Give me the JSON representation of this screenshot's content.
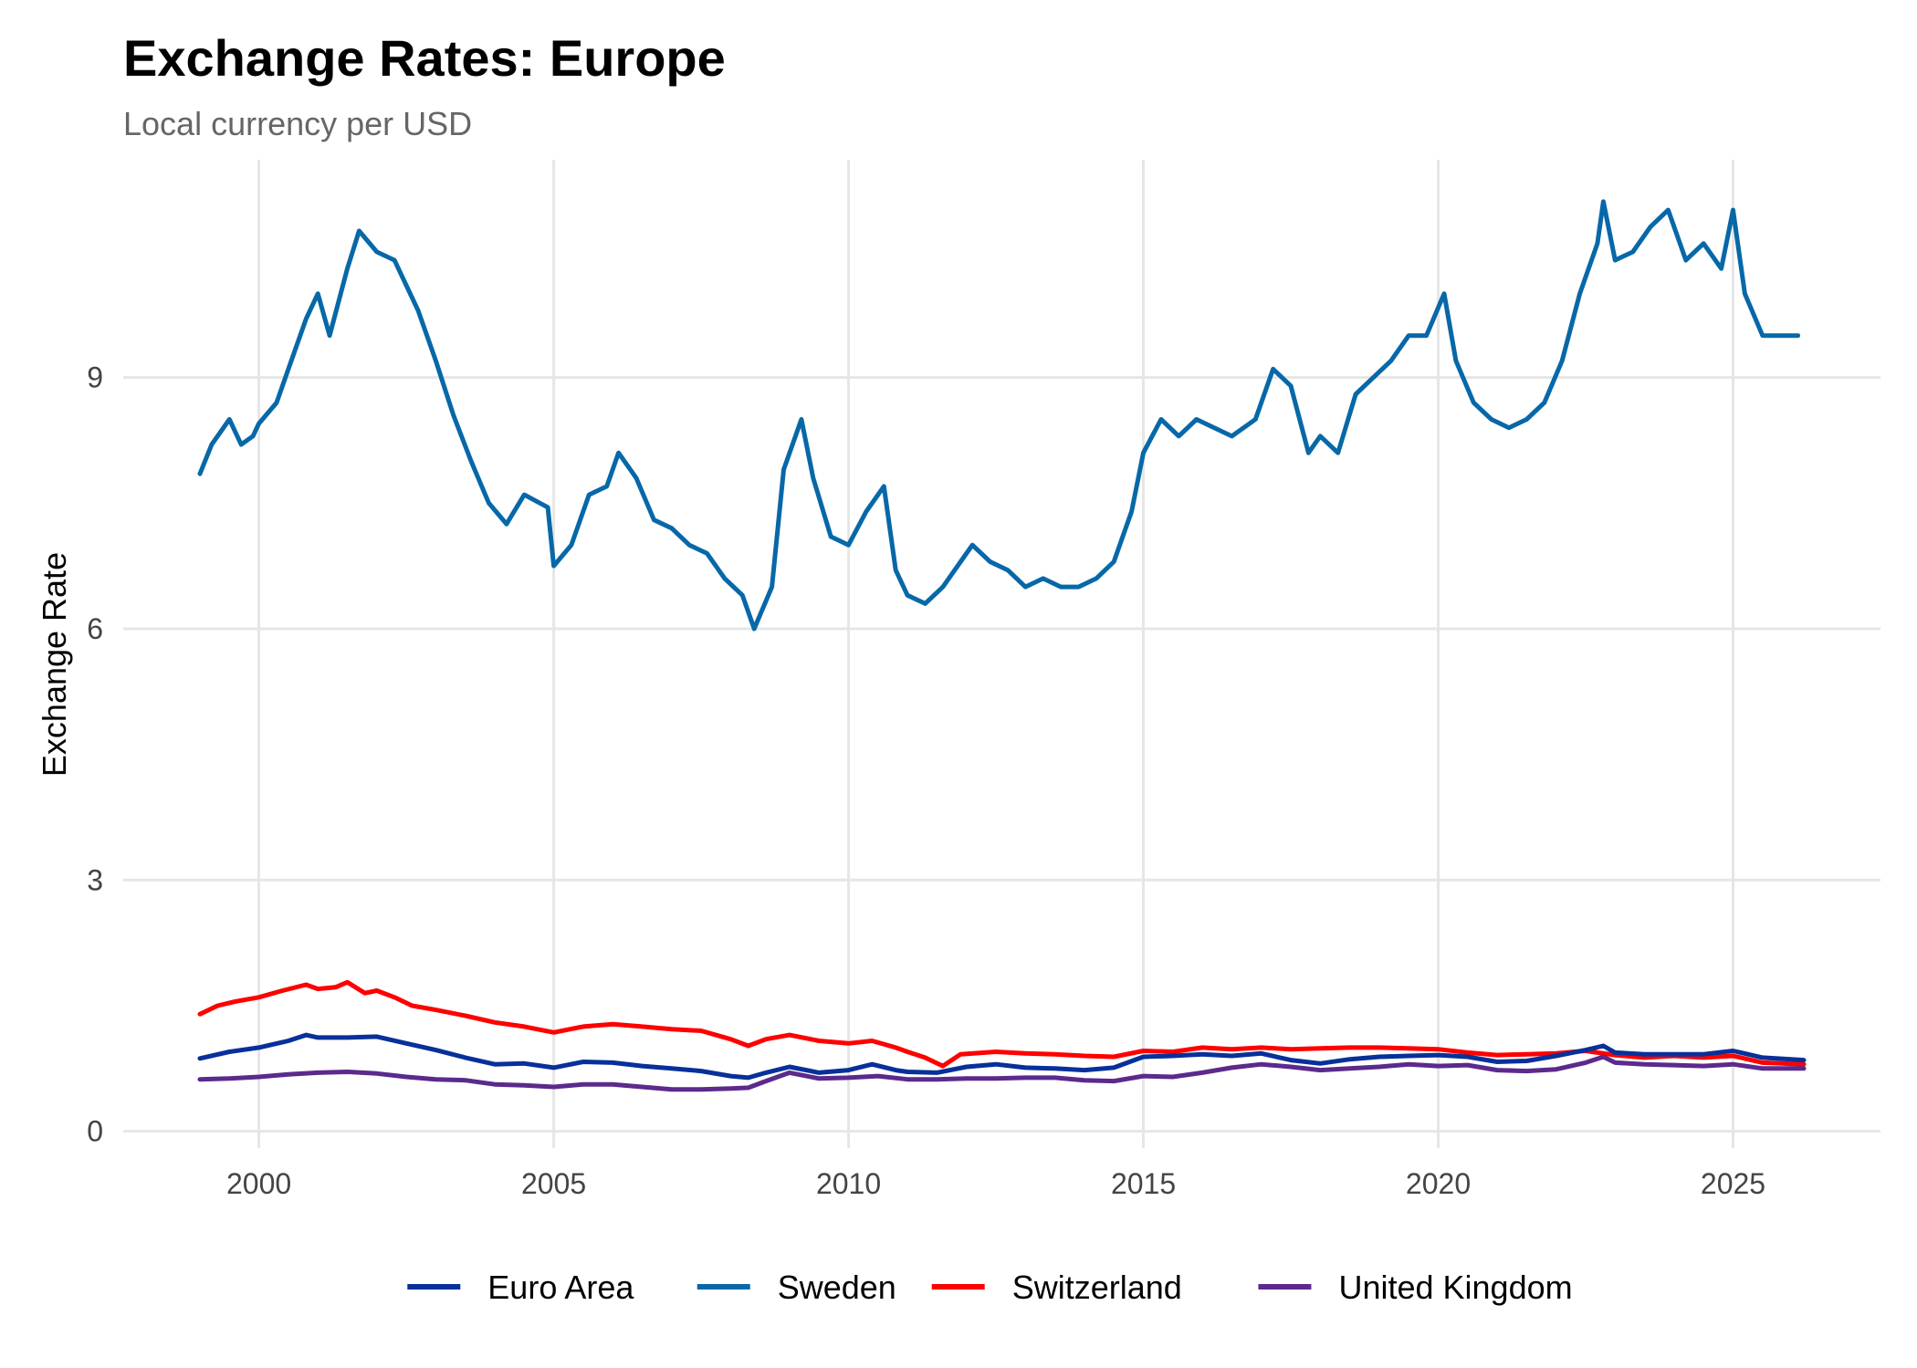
{
  "chart_data": {
    "type": "line",
    "title": "Exchange Rates: Europe",
    "subtitle": "Local currency per USD",
    "xlabel": "",
    "ylabel": "Exchange Rate",
    "xlim": [
      1997.7,
      2027.5
    ],
    "ylim": [
      -0.2,
      11.6
    ],
    "x_ticks": [
      2000,
      2005,
      2010,
      2015,
      2020,
      2025
    ],
    "y_ticks": [
      0,
      3,
      6,
      9
    ],
    "grid": true,
    "legend_position": "bottom",
    "series": [
      {
        "name": "Euro Area",
        "color": "#08309a",
        "x": [
          1999.0,
          1999.5,
          2000.0,
          2000.5,
          2000.8,
          2001.0,
          2001.5,
          2002.0,
          2002.5,
          2003.0,
          2003.5,
          2004.0,
          2004.5,
          2005.0,
          2005.5,
          2006.0,
          2006.5,
          2007.0,
          2007.5,
          2008.0,
          2008.3,
          2008.6,
          2009.0,
          2009.5,
          2010.0,
          2010.4,
          2010.8,
          2011.0,
          2011.5,
          2012.0,
          2012.5,
          2013.0,
          2013.5,
          2014.0,
          2014.5,
          2015.0,
          2015.5,
          2016.0,
          2016.5,
          2017.0,
          2017.5,
          2018.0,
          2018.5,
          2019.0,
          2019.5,
          2020.0,
          2020.5,
          2021.0,
          2021.5,
          2022.0,
          2022.5,
          2022.8,
          2023.0,
          2023.5,
          2024.0,
          2024.5,
          2025.0,
          2025.5,
          2026.2
        ],
        "values": [
          0.87,
          0.95,
          1.0,
          1.08,
          1.15,
          1.12,
          1.12,
          1.13,
          1.05,
          0.97,
          0.88,
          0.8,
          0.81,
          0.76,
          0.83,
          0.82,
          0.78,
          0.75,
          0.72,
          0.66,
          0.64,
          0.7,
          0.77,
          0.7,
          0.73,
          0.8,
          0.73,
          0.71,
          0.7,
          0.77,
          0.8,
          0.76,
          0.75,
          0.73,
          0.76,
          0.89,
          0.9,
          0.92,
          0.9,
          0.93,
          0.85,
          0.81,
          0.86,
          0.89,
          0.9,
          0.91,
          0.89,
          0.83,
          0.84,
          0.9,
          0.97,
          1.02,
          0.94,
          0.92,
          0.92,
          0.92,
          0.96,
          0.88,
          0.85
        ]
      },
      {
        "name": "Sweden",
        "color": "#0768a8",
        "x": [
          1999.0,
          1999.2,
          1999.5,
          1999.7,
          1999.9,
          2000.0,
          2000.3,
          2000.5,
          2000.8,
          2001.0,
          2001.2,
          2001.5,
          2001.7,
          2002.0,
          2002.3,
          2002.7,
          2003.0,
          2003.3,
          2003.6,
          2003.9,
          2004.2,
          2004.5,
          2004.9,
          2005.0,
          2005.3,
          2005.6,
          2005.9,
          2006.1,
          2006.4,
          2006.7,
          2007.0,
          2007.3,
          2007.6,
          2007.9,
          2008.2,
          2008.4,
          2008.7,
          2008.9,
          2009.2,
          2009.4,
          2009.7,
          2010.0,
          2010.3,
          2010.6,
          2010.8,
          2011.0,
          2011.3,
          2011.6,
          2011.9,
          2012.1,
          2012.4,
          2012.7,
          2013.0,
          2013.3,
          2013.6,
          2013.9,
          2014.2,
          2014.5,
          2014.8,
          2015.0,
          2015.3,
          2015.6,
          2015.9,
          2016.2,
          2016.5,
          2016.9,
          2017.2,
          2017.5,
          2017.8,
          2018.0,
          2018.3,
          2018.6,
          2018.9,
          2019.2,
          2019.5,
          2019.8,
          2020.1,
          2020.3,
          2020.6,
          2020.9,
          2021.2,
          2021.5,
          2021.8,
          2022.1,
          2022.4,
          2022.7,
          2022.8,
          2023.0,
          2023.3,
          2023.6,
          2023.9,
          2024.2,
          2024.5,
          2024.8,
          2025.0,
          2025.2,
          2025.5,
          2026.1
        ],
        "values": [
          7.85,
          8.2,
          8.5,
          8.2,
          8.3,
          8.45,
          8.7,
          9.1,
          9.7,
          10.0,
          9.5,
          10.3,
          10.75,
          10.5,
          10.4,
          9.8,
          9.2,
          8.55,
          8.0,
          7.5,
          7.25,
          7.6,
          7.45,
          6.75,
          7.0,
          7.6,
          7.7,
          8.1,
          7.8,
          7.3,
          7.2,
          7.0,
          6.9,
          6.6,
          6.4,
          6.0,
          6.5,
          7.9,
          8.5,
          7.8,
          7.1,
          7.0,
          7.4,
          7.7,
          6.7,
          6.4,
          6.3,
          6.5,
          6.8,
          7.0,
          6.8,
          6.7,
          6.5,
          6.6,
          6.5,
          6.5,
          6.6,
          6.8,
          7.4,
          8.1,
          8.5,
          8.3,
          8.5,
          8.4,
          8.3,
          8.5,
          9.1,
          8.9,
          8.1,
          8.3,
          8.1,
          8.8,
          9.0,
          9.2,
          9.5,
          9.5,
          10.0,
          9.2,
          8.7,
          8.5,
          8.4,
          8.5,
          8.7,
          9.2,
          10.0,
          10.6,
          11.1,
          10.4,
          10.5,
          10.8,
          11.0,
          10.4,
          10.6,
          10.3,
          11.0,
          10.0,
          9.5,
          9.5
        ]
      },
      {
        "name": "Switzerland",
        "color": "#ff0000",
        "x": [
          1999.0,
          1999.3,
          1999.6,
          2000.0,
          2000.4,
          2000.8,
          2001.0,
          2001.3,
          2001.5,
          2001.8,
          2002.0,
          2002.3,
          2002.6,
          2003.0,
          2003.5,
          2004.0,
          2004.5,
          2005.0,
          2005.5,
          2006.0,
          2006.5,
          2007.0,
          2007.5,
          2008.0,
          2008.3,
          2008.6,
          2009.0,
          2009.5,
          2010.0,
          2010.4,
          2010.8,
          2011.0,
          2011.3,
          2011.6,
          2011.9,
          2012.5,
          2013.0,
          2013.5,
          2014.0,
          2014.5,
          2015.0,
          2015.5,
          2016.0,
          2016.5,
          2017.0,
          2017.5,
          2018.0,
          2018.5,
          2019.0,
          2019.5,
          2020.0,
          2020.5,
          2021.0,
          2021.5,
          2022.0,
          2022.5,
          2023.0,
          2023.5,
          2024.0,
          2024.5,
          2025.0,
          2025.5,
          2026.2
        ],
        "values": [
          1.4,
          1.5,
          1.55,
          1.6,
          1.68,
          1.75,
          1.7,
          1.72,
          1.78,
          1.65,
          1.68,
          1.6,
          1.5,
          1.45,
          1.38,
          1.3,
          1.25,
          1.18,
          1.25,
          1.28,
          1.25,
          1.22,
          1.2,
          1.1,
          1.02,
          1.1,
          1.15,
          1.08,
          1.05,
          1.08,
          1.0,
          0.95,
          0.88,
          0.78,
          0.92,
          0.95,
          0.93,
          0.92,
          0.9,
          0.89,
          0.96,
          0.95,
          1.0,
          0.98,
          1.0,
          0.98,
          0.99,
          1.0,
          1.0,
          0.99,
          0.98,
          0.94,
          0.91,
          0.92,
          0.93,
          0.96,
          0.91,
          0.88,
          0.9,
          0.88,
          0.9,
          0.82,
          0.8
        ]
      },
      {
        "name": "United Kingdom",
        "color": "#5b2a8c",
        "x": [
          1999.0,
          1999.5,
          2000.0,
          2000.5,
          2001.0,
          2001.5,
          2002.0,
          2002.5,
          2003.0,
          2003.5,
          2004.0,
          2004.5,
          2005.0,
          2005.5,
          2006.0,
          2006.5,
          2007.0,
          2007.5,
          2008.0,
          2008.3,
          2008.6,
          2009.0,
          2009.5,
          2010.0,
          2010.5,
          2011.0,
          2011.5,
          2012.0,
          2012.5,
          2013.0,
          2013.5,
          2014.0,
          2014.5,
          2015.0,
          2015.5,
          2016.0,
          2016.5,
          2017.0,
          2017.5,
          2018.0,
          2018.5,
          2019.0,
          2019.5,
          2020.0,
          2020.5,
          2021.0,
          2021.5,
          2022.0,
          2022.5,
          2022.8,
          2023.0,
          2023.5,
          2024.0,
          2024.5,
          2025.0,
          2025.5,
          2026.2
        ],
        "values": [
          0.62,
          0.63,
          0.65,
          0.68,
          0.7,
          0.71,
          0.69,
          0.65,
          0.62,
          0.61,
          0.56,
          0.55,
          0.53,
          0.56,
          0.56,
          0.53,
          0.5,
          0.5,
          0.51,
          0.52,
          0.6,
          0.7,
          0.63,
          0.64,
          0.66,
          0.62,
          0.62,
          0.63,
          0.63,
          0.64,
          0.64,
          0.61,
          0.6,
          0.66,
          0.65,
          0.7,
          0.76,
          0.8,
          0.77,
          0.73,
          0.75,
          0.77,
          0.8,
          0.78,
          0.79,
          0.73,
          0.72,
          0.74,
          0.82,
          0.89,
          0.82,
          0.8,
          0.79,
          0.78,
          0.8,
          0.75,
          0.75
        ]
      }
    ]
  }
}
